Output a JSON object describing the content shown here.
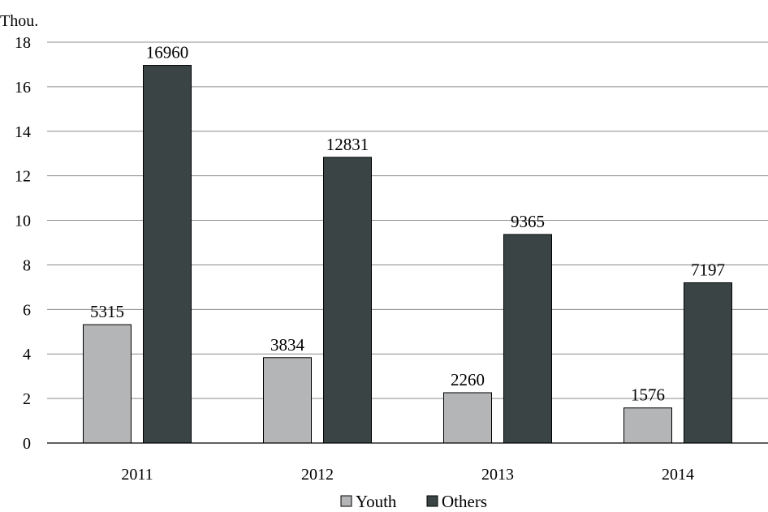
{
  "chart_data": {
    "type": "bar",
    "unit_label": "Thou.",
    "categories": [
      "2011",
      "2012",
      "2013",
      "2014"
    ],
    "series": [
      {
        "name": "Youth",
        "values": [
          5.315,
          3.834,
          2.26,
          1.576
        ],
        "labels": [
          "5315",
          "3834",
          "2260",
          "1576"
        ],
        "color": "#b3b5b7"
      },
      {
        "name": "Others",
        "values": [
          16.96,
          12.831,
          9.365,
          7.197
        ],
        "labels": [
          "16960",
          "12831",
          "9365",
          "7197"
        ],
        "color": "#3a4445"
      }
    ],
    "ylim": [
      0,
      18
    ],
    "yticks": [
      "0",
      "2",
      "4",
      "6",
      "8",
      "10",
      "12",
      "14",
      "16",
      "18"
    ],
    "grid": true,
    "legend_position": "bottom"
  }
}
